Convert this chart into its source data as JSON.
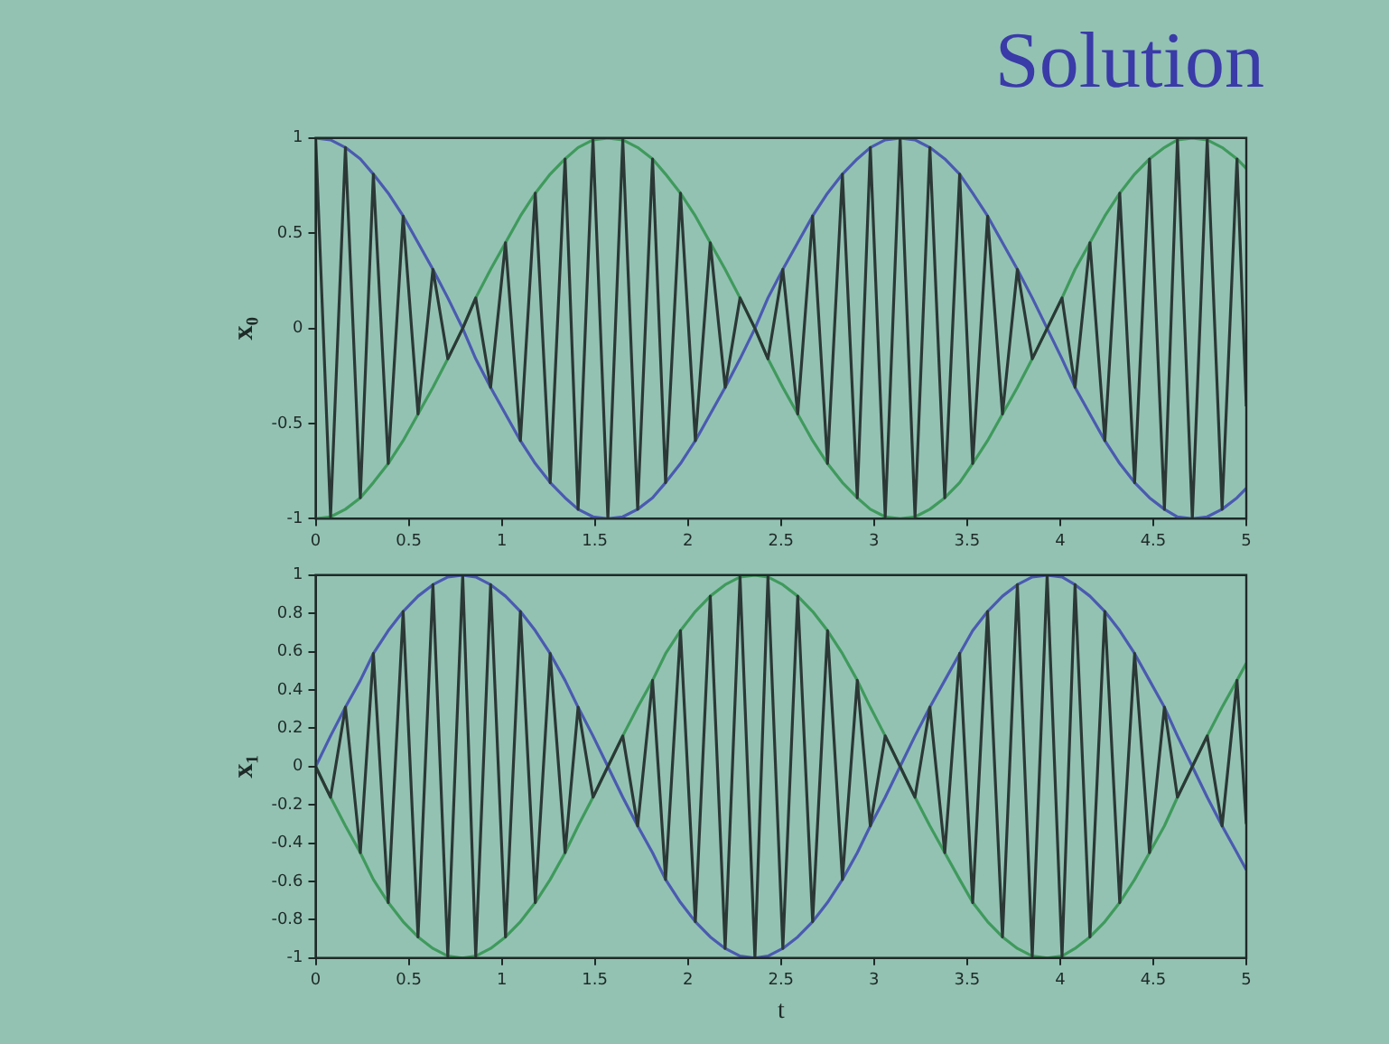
{
  "chart_data": [
    {
      "type": "line",
      "title": "Solution",
      "ylabel": "x₀",
      "xlim": [
        0,
        5
      ],
      "ylim": [
        -1,
        1
      ],
      "xticks": [
        0,
        0.5,
        1,
        1.5,
        2,
        2.5,
        3,
        3.5,
        4,
        4.5,
        5
      ],
      "yticks": [
        -1,
        -0.5,
        0,
        0.5,
        1
      ],
      "grid": false,
      "legend": false,
      "marker": "none",
      "line_style": "solid",
      "x": [
        0,
        0.08,
        0.16,
        0.24,
        0.31,
        0.39,
        0.47,
        0.55,
        0.63,
        0.71,
        0.79,
        0.86,
        0.94,
        1.02,
        1.1,
        1.18,
        1.26,
        1.34,
        1.41,
        1.49,
        1.57,
        1.65,
        1.73,
        1.81,
        1.88,
        1.96,
        2.04,
        2.12,
        2.2,
        2.28,
        2.36,
        2.43,
        2.51,
        2.59,
        2.67,
        2.75,
        2.83,
        2.91,
        2.98,
        3.06,
        3.14,
        3.22,
        3.3,
        3.38,
        3.46,
        3.53,
        3.61,
        3.69,
        3.77,
        3.85,
        3.93,
        4.01,
        4.08,
        4.16,
        4.24,
        4.32,
        4.4,
        4.48,
        4.56,
        4.63,
        4.71,
        4.79,
        4.87,
        4.95,
        5
      ],
      "series": [
        {
          "color": "#2b3835",
          "values": [
            1,
            -0.99,
            0.95,
            -0.89,
            0.81,
            -0.71,
            0.59,
            -0.45,
            0.31,
            -0.16,
            0,
            0.16,
            -0.31,
            0.45,
            -0.59,
            0.71,
            -0.81,
            0.89,
            -0.95,
            0.99,
            -1,
            0.99,
            -0.95,
            0.89,
            -0.81,
            0.71,
            -0.59,
            0.45,
            -0.31,
            0.16,
            0,
            -0.16,
            0.31,
            -0.45,
            0.59,
            -0.71,
            0.81,
            -0.89,
            0.95,
            -0.99,
            1,
            -0.99,
            0.95,
            -0.89,
            0.81,
            -0.71,
            0.59,
            -0.45,
            0.31,
            -0.16,
            0,
            0.16,
            -0.31,
            0.45,
            -0.59,
            0.71,
            -0.81,
            0.89,
            -0.95,
            0.99,
            -1,
            0.99,
            -0.95,
            0.89,
            -0.41
          ]
        },
        {
          "color": "#4a5ab0",
          "values": [
            1,
            0.99,
            0.95,
            0.89,
            0.81,
            0.71,
            0.59,
            0.45,
            0.31,
            0.16,
            0,
            -0.16,
            -0.31,
            -0.45,
            -0.59,
            -0.71,
            -0.81,
            -0.89,
            -0.95,
            -0.99,
            -1,
            -0.99,
            -0.95,
            -0.89,
            -0.81,
            -0.71,
            -0.59,
            -0.45,
            -0.31,
            -0.16,
            0,
            0.16,
            0.31,
            0.45,
            0.59,
            0.71,
            0.81,
            0.89,
            0.95,
            0.99,
            1,
            0.99,
            0.95,
            0.89,
            0.81,
            0.71,
            0.59,
            0.45,
            0.31,
            0.16,
            0,
            -0.16,
            -0.31,
            -0.45,
            -0.59,
            -0.71,
            -0.81,
            -0.89,
            -0.95,
            -0.99,
            -1,
            -0.99,
            -0.95,
            -0.89,
            -0.84
          ]
        },
        {
          "color": "#3f9a5c",
          "values": [
            -1,
            -0.99,
            -0.95,
            -0.89,
            -0.81,
            -0.71,
            -0.59,
            -0.45,
            -0.31,
            -0.16,
            0,
            0.16,
            0.31,
            0.45,
            0.59,
            0.71,
            0.81,
            0.89,
            0.95,
            0.99,
            1,
            0.99,
            0.95,
            0.89,
            0.81,
            0.71,
            0.59,
            0.45,
            0.31,
            0.16,
            0,
            -0.16,
            -0.31,
            -0.45,
            -0.59,
            -0.71,
            -0.81,
            -0.89,
            -0.95,
            -0.99,
            -1,
            -0.99,
            -0.95,
            -0.89,
            -0.81,
            -0.71,
            -0.59,
            -0.45,
            -0.31,
            -0.16,
            0,
            0.16,
            0.31,
            0.45,
            0.59,
            0.71,
            0.81,
            0.89,
            0.95,
            0.99,
            1,
            0.99,
            0.95,
            0.89,
            0.84
          ]
        }
      ]
    },
    {
      "type": "line",
      "xlabel": "t",
      "ylabel": "x₁",
      "xlim": [
        0,
        5
      ],
      "ylim": [
        -1,
        1
      ],
      "xticks": [
        0,
        0.5,
        1,
        1.5,
        2,
        2.5,
        3,
        3.5,
        4,
        4.5,
        5
      ],
      "yticks": [
        -1,
        -0.8,
        -0.6,
        -0.4,
        -0.2,
        0,
        0.2,
        0.4,
        0.6,
        0.8,
        1
      ],
      "grid": false,
      "legend": false,
      "marker": "none",
      "line_style": "solid",
      "x": [
        0,
        0.08,
        0.16,
        0.24,
        0.31,
        0.39,
        0.47,
        0.55,
        0.63,
        0.71,
        0.79,
        0.86,
        0.94,
        1.02,
        1.1,
        1.18,
        1.26,
        1.34,
        1.41,
        1.49,
        1.57,
        1.65,
        1.73,
        1.81,
        1.88,
        1.96,
        2.04,
        2.12,
        2.2,
        2.28,
        2.36,
        2.43,
        2.51,
        2.59,
        2.67,
        2.75,
        2.83,
        2.91,
        2.98,
        3.06,
        3.14,
        3.22,
        3.3,
        3.38,
        3.46,
        3.53,
        3.61,
        3.69,
        3.77,
        3.85,
        3.93,
        4.01,
        4.08,
        4.16,
        4.24,
        4.32,
        4.4,
        4.48,
        4.56,
        4.63,
        4.71,
        4.79,
        4.87,
        4.95,
        5
      ],
      "series": [
        {
          "color": "#2b3835",
          "values": [
            0,
            -0.16,
            0.31,
            -0.45,
            0.59,
            -0.71,
            0.81,
            -0.89,
            0.95,
            -0.99,
            1,
            -0.99,
            0.95,
            -0.89,
            0.81,
            -0.71,
            0.59,
            -0.45,
            0.31,
            -0.16,
            0,
            0.16,
            -0.31,
            0.45,
            -0.59,
            0.71,
            -0.81,
            0.89,
            -0.95,
            0.99,
            -1,
            0.99,
            -0.95,
            0.89,
            -0.81,
            0.71,
            -0.59,
            0.45,
            -0.31,
            0.16,
            0,
            -0.16,
            0.31,
            -0.45,
            0.59,
            -0.71,
            0.81,
            -0.89,
            0.95,
            -0.99,
            1,
            -0.99,
            0.95,
            -0.89,
            0.81,
            -0.71,
            0.59,
            -0.45,
            0.31,
            -0.16,
            0,
            0.16,
            -0.31,
            0.45,
            -0.3
          ]
        },
        {
          "color": "#4a5ab0",
          "values": [
            0,
            0.16,
            0.31,
            0.45,
            0.59,
            0.71,
            0.81,
            0.89,
            0.95,
            0.99,
            1,
            0.99,
            0.95,
            0.89,
            0.81,
            0.71,
            0.59,
            0.45,
            0.31,
            0.16,
            0,
            -0.16,
            -0.31,
            -0.45,
            -0.59,
            -0.71,
            -0.81,
            -0.89,
            -0.95,
            -0.99,
            -1,
            -0.99,
            -0.95,
            -0.89,
            -0.81,
            -0.71,
            -0.59,
            -0.45,
            -0.31,
            -0.16,
            0,
            0.16,
            0.31,
            0.45,
            0.59,
            0.71,
            0.81,
            0.89,
            0.95,
            0.99,
            1,
            0.99,
            0.95,
            0.89,
            0.81,
            0.71,
            0.59,
            0.45,
            0.31,
            0.16,
            0,
            -0.16,
            -0.31,
            -0.45,
            -0.54
          ]
        },
        {
          "color": "#3f9a5c",
          "values": [
            0,
            -0.16,
            -0.31,
            -0.45,
            -0.59,
            -0.71,
            -0.81,
            -0.89,
            -0.95,
            -0.99,
            -1,
            -0.99,
            -0.95,
            -0.89,
            -0.81,
            -0.71,
            -0.59,
            -0.45,
            -0.31,
            -0.16,
            0,
            0.16,
            0.31,
            0.45,
            0.59,
            0.71,
            0.81,
            0.89,
            0.95,
            0.99,
            1,
            0.99,
            0.95,
            0.89,
            0.81,
            0.71,
            0.59,
            0.45,
            0.31,
            0.16,
            0,
            -0.16,
            -0.31,
            -0.45,
            -0.59,
            -0.71,
            -0.81,
            -0.89,
            -0.95,
            -0.99,
            -1,
            -0.99,
            -0.95,
            -0.89,
            -0.81,
            -0.71,
            -0.59,
            -0.45,
            -0.31,
            -0.16,
            0,
            0.16,
            0.31,
            0.45,
            0.54
          ]
        }
      ]
    }
  ]
}
